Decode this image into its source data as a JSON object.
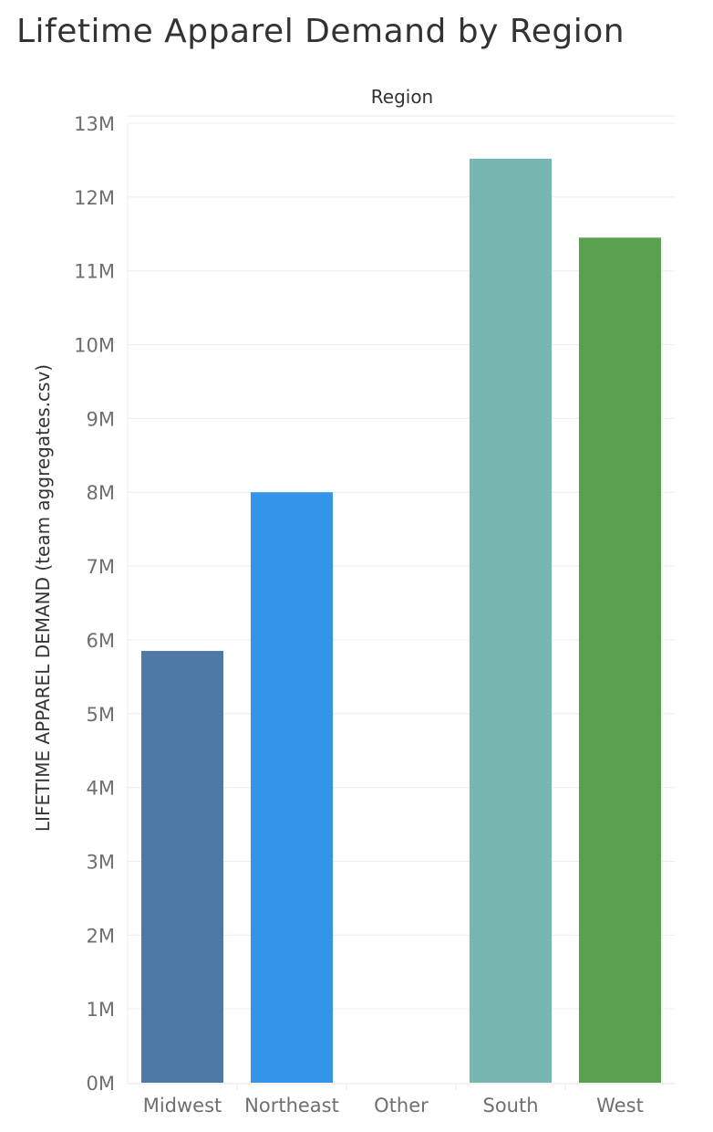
{
  "chart_data": {
    "type": "bar",
    "title": "Lifetime Apparel Demand by Region",
    "column_header": "Region",
    "ylabel": "LIFETIME APPAREL DEMAND (team aggregates.csv)",
    "categories": [
      "Midwest",
      "Northeast",
      "Other",
      "South",
      "West"
    ],
    "values": [
      5.85,
      8.0,
      0,
      12.52,
      11.45
    ],
    "value_unit": "M",
    "ylim": [
      0,
      13
    ],
    "yticks": [
      "0M",
      "1M",
      "2M",
      "3M",
      "4M",
      "5M",
      "6M",
      "7M",
      "8M",
      "9M",
      "10M",
      "11M",
      "12M",
      "13M"
    ],
    "colors": [
      "#4e79a7",
      "#3395ea",
      "#cccccc",
      "#76b7b2",
      "#59a14f"
    ],
    "grid": true
  }
}
